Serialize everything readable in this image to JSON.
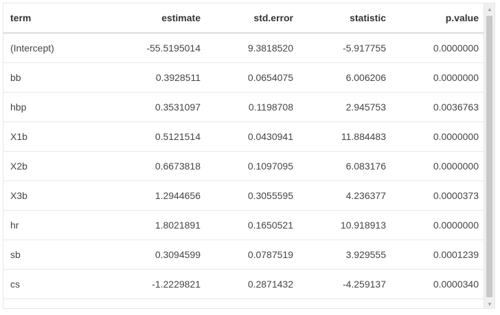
{
  "table": {
    "headers": [
      "term",
      "estimate",
      "std.error",
      "statistic",
      "p.value"
    ],
    "rows": [
      [
        "(Intercept)",
        "-55.5195014",
        "9.3818520",
        "-5.917755",
        "0.0000000"
      ],
      [
        "bb",
        "0.3928511",
        "0.0654075",
        "6.006206",
        "0.0000000"
      ],
      [
        "hbp",
        "0.3531097",
        "0.1198708",
        "2.945753",
        "0.0036763"
      ],
      [
        "X1b",
        "0.5121514",
        "0.0430941",
        "11.884483",
        "0.0000000"
      ],
      [
        "X2b",
        "0.6673818",
        "0.1097095",
        "6.083176",
        "0.0000000"
      ],
      [
        "X3b",
        "1.2944656",
        "0.3055595",
        "4.236377",
        "0.0000373"
      ],
      [
        "hr",
        "1.8021891",
        "0.1650521",
        "10.918913",
        "0.0000000"
      ],
      [
        "sb",
        "0.3094599",
        "0.0787519",
        "3.929555",
        "0.0001239"
      ],
      [
        "cs",
        "-1.2229821",
        "0.2871432",
        "-4.259137",
        "0.0000340"
      ]
    ]
  },
  "scrollbar": {
    "up_icon": "triangle-up-icon",
    "down_icon": "triangle-down-icon"
  }
}
